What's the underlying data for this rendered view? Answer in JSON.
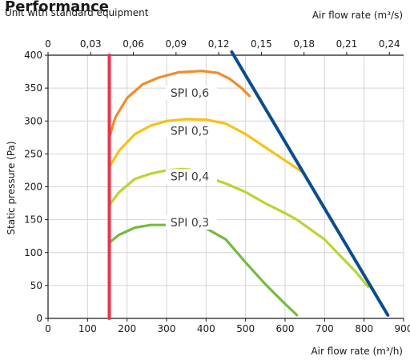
{
  "chart_data": {
    "type": "line",
    "title": "Performance",
    "subtitle": "Unit with standard equipment",
    "xlabel": "Air flow rate (m³/h)",
    "ylabel": "Static pressure (Pa)",
    "secondary_xlabel": "Air flow rate (m³/s)",
    "xlim": [
      0,
      900
    ],
    "ylim": [
      0,
      400
    ],
    "secondary_xlim": [
      0,
      0.25
    ],
    "xticks": [
      "0",
      "100",
      "200",
      "300",
      "400",
      "500",
      "600",
      "700",
      "800",
      "900"
    ],
    "xtick_values": [
      0,
      100,
      200,
      300,
      400,
      500,
      600,
      700,
      800,
      900
    ],
    "yticks": [
      "0",
      "50",
      "100",
      "150",
      "200",
      "250",
      "300",
      "350",
      "400"
    ],
    "ytick_values": [
      0,
      50,
      100,
      150,
      200,
      250,
      300,
      350,
      400
    ],
    "secondary_xticks": [
      "0",
      "0,03",
      "0,06",
      "0,09",
      "0,12",
      "0,15",
      "0,18",
      "0,21",
      "0,24"
    ],
    "secondary_xtick_values": [
      0,
      0.03,
      0.06,
      0.09,
      0.12,
      0.15,
      0.18,
      0.21,
      0.24
    ],
    "grid": true,
    "series": [
      {
        "name": "SPI 0,6",
        "color": "#ef8c2b",
        "x": [
          155,
          170,
          200,
          240,
          280,
          330,
          390,
          430,
          460,
          490,
          510
        ],
        "y": [
          275,
          305,
          335,
          356,
          366,
          374,
          376,
          373,
          364,
          350,
          338
        ]
      },
      {
        "name": "SPI 0,5",
        "color": "#f5c217",
        "x": [
          155,
          180,
          220,
          260,
          300,
          350,
          400,
          450,
          500,
          550,
          600,
          640
        ],
        "y": [
          230,
          255,
          280,
          293,
          300,
          303,
          302,
          296,
          280,
          260,
          240,
          224
        ]
      },
      {
        "name": "SPI 0,4",
        "color": "#b8d631",
        "x": [
          155,
          180,
          220,
          260,
          300,
          340,
          360,
          400,
          450,
          500,
          550,
          600,
          630,
          700,
          780,
          810
        ],
        "y": [
          172,
          192,
          212,
          220,
          225,
          227,
          226,
          215,
          205,
          192,
          175,
          160,
          150,
          120,
          70,
          48
        ]
      },
      {
        "name": "SPI 0,3",
        "color": "#74bb42",
        "x": [
          155,
          180,
          220,
          260,
          300,
          350,
          400,
          450,
          500,
          550,
          600,
          630
        ],
        "y": [
          115,
          127,
          138,
          142,
          142,
          141,
          137,
          120,
          85,
          52,
          22,
          5
        ]
      },
      {
        "name": "",
        "color": "#e8344a",
        "x": [
          155,
          155
        ],
        "y": [
          0,
          400
        ]
      },
      {
        "name": "",
        "color": "#0b4d8e",
        "x": [
          465,
          860
        ],
        "y": [
          405,
          5
        ]
      }
    ]
  }
}
